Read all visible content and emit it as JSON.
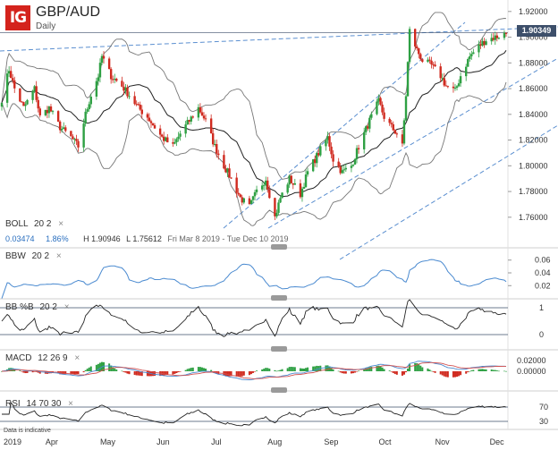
{
  "header": {
    "logo": "IG",
    "symbol": "GBP/AUD",
    "timeframe": "Daily"
  },
  "last_price": "1.90349",
  "boll": {
    "label": "BOLL",
    "params": "20  2",
    "close_icon": "×",
    "bandwidth_value": "0.03474",
    "percent_value": "1.86%",
    "high_text": "H 1.90946",
    "low_text": "L 1.75612",
    "range_text": "Fri Mar 8 2019 - Tue Dec 10 2019"
  },
  "indicators": {
    "bbw": {
      "label": "BBW",
      "params": "20  2"
    },
    "bbpb": {
      "label": "BB %B",
      "params": "20  2"
    },
    "macd": {
      "label": "MACD",
      "params": "12  26  9"
    },
    "rsi": {
      "label": "RSI",
      "params": "14  70  30"
    }
  },
  "footer_note": "Data is indicative",
  "colors": {
    "up": "#2ea043",
    "down": "#d02a1f",
    "bollinger": "#777777",
    "sma": "#222222",
    "trendline": "#5b8fd0",
    "bbw_line": "#4a8ad0",
    "macd_line": "#4a8ad0",
    "signal_line": "#d05050"
  },
  "chart_data": [
    {
      "type": "candlestick",
      "title": "GBP/AUD",
      "x": [
        "2019",
        "Apr",
        "May",
        "Jun",
        "Jul",
        "Aug",
        "Sep",
        "Oct",
        "Nov",
        "Dec"
      ],
      "y_ticks": [
        "1.92000",
        "1.90000",
        "1.88000",
        "1.86000",
        "1.84000",
        "1.82000",
        "1.80000",
        "1.78000",
        "1.76000"
      ],
      "ylim": [
        1.752,
        1.925
      ],
      "close_path": [
        [
          "2019-03-08",
          1.852
        ],
        [
          "2019-03-12",
          1.875
        ],
        [
          "2019-03-15",
          1.86
        ],
        [
          "2019-03-20",
          1.845
        ],
        [
          "2019-03-26",
          1.86
        ],
        [
          "2019-03-29",
          1.838
        ],
        [
          "2019-04-03",
          1.845
        ],
        [
          "2019-04-09",
          1.83
        ],
        [
          "2019-04-15",
          1.822
        ],
        [
          "2019-04-19",
          1.815
        ],
        [
          "2019-04-23",
          1.84
        ],
        [
          "2019-04-26",
          1.855
        ],
        [
          "2019-04-30",
          1.87
        ],
        [
          "2019-05-02",
          1.885
        ],
        [
          "2019-05-07",
          1.87
        ],
        [
          "2019-05-13",
          1.862
        ],
        [
          "2019-05-17",
          1.855
        ],
        [
          "2019-05-22",
          1.845
        ],
        [
          "2019-05-27",
          1.838
        ],
        [
          "2019-05-31",
          1.83
        ],
        [
          "2019-06-04",
          1.822
        ],
        [
          "2019-06-10",
          1.815
        ],
        [
          "2019-06-14",
          1.825
        ],
        [
          "2019-06-19",
          1.835
        ],
        [
          "2019-06-24",
          1.845
        ],
        [
          "2019-06-28",
          1.835
        ],
        [
          "2019-07-03",
          1.815
        ],
        [
          "2019-07-08",
          1.8
        ],
        [
          "2019-07-12",
          1.79
        ],
        [
          "2019-07-17",
          1.775
        ],
        [
          "2019-07-22",
          1.768
        ],
        [
          "2019-07-26",
          1.78
        ],
        [
          "2019-07-31",
          1.79
        ],
        [
          "2019-08-05",
          1.76
        ],
        [
          "2019-08-08",
          1.775
        ],
        [
          "2019-08-13",
          1.79
        ],
        [
          "2019-08-19",
          1.778
        ],
        [
          "2019-08-23",
          1.795
        ],
        [
          "2019-08-29",
          1.81
        ],
        [
          "2019-09-03",
          1.822
        ],
        [
          "2019-09-06",
          1.805
        ],
        [
          "2019-09-11",
          1.795
        ],
        [
          "2019-09-16",
          1.8
        ],
        [
          "2019-09-20",
          1.815
        ],
        [
          "2019-09-26",
          1.835
        ],
        [
          "2019-10-01",
          1.85
        ],
        [
          "2019-10-04",
          1.838
        ],
        [
          "2019-10-08",
          1.83
        ],
        [
          "2019-10-11",
          1.825
        ],
        [
          "2019-10-14",
          1.815
        ],
        [
          "2019-10-16",
          1.855
        ],
        [
          "2019-10-18",
          1.905
        ],
        [
          "2019-10-22",
          1.89
        ],
        [
          "2019-10-25",
          1.882
        ],
        [
          "2019-10-30",
          1.878
        ],
        [
          "2019-11-04",
          1.87
        ],
        [
          "2019-11-07",
          1.862
        ],
        [
          "2019-11-12",
          1.858
        ],
        [
          "2019-11-15",
          1.87
        ],
        [
          "2019-11-20",
          1.885
        ],
        [
          "2019-11-25",
          1.893
        ],
        [
          "2019-11-29",
          1.898
        ],
        [
          "2019-12-04",
          1.9
        ],
        [
          "2019-12-10",
          1.903
        ]
      ]
    },
    {
      "type": "line",
      "title": "BBW",
      "y_ticks": [
        "0.06",
        "0.04",
        "0.02"
      ],
      "ylim": [
        0.005,
        0.075
      ]
    },
    {
      "type": "line",
      "title": "BB %B",
      "y_ticks": [
        "1",
        "0"
      ],
      "ylim": [
        -0.25,
        1.25
      ]
    },
    {
      "type": "bar",
      "title": "MACD",
      "y_ticks": [
        "0.02000",
        "0.00000"
      ],
      "ylim": [
        -0.02,
        0.025
      ]
    },
    {
      "type": "line",
      "title": "RSI",
      "y_ticks": [
        "70",
        "30"
      ],
      "ylim": [
        15,
        85
      ]
    }
  ]
}
